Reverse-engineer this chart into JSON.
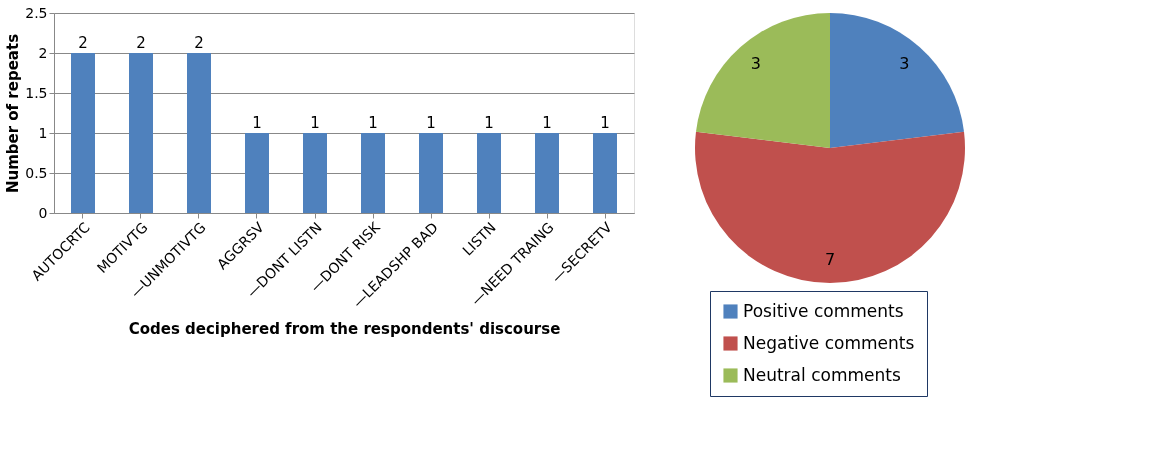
{
  "chart_data": [
    {
      "type": "bar",
      "xlabel": "Codes deciphered from the respondents' discourse",
      "ylabel": "Number of repeats",
      "categories": [
        "AUTOCRTC",
        "MOTIVTG",
        "—UNMOTIVTG",
        "AGGRSV",
        "—DONT LISTN",
        "—DONT RISK",
        "—LEADSHP BAD",
        "LISTN",
        "—NEED TRAING",
        "—SECRETV"
      ],
      "values": [
        2,
        2,
        2,
        1,
        1,
        1,
        1,
        1,
        1,
        1
      ],
      "color": "#4f81bd",
      "ylim": [
        0,
        2.5
      ],
      "yticks": [
        0,
        0.5,
        1,
        1.5,
        2,
        2.5
      ],
      "grid": "y",
      "data_labels": true
    },
    {
      "type": "pie",
      "categories": [
        "Positive comments",
        "Negative comments",
        "Neutral comments"
      ],
      "values": [
        3,
        7,
        3
      ],
      "colors": [
        "#4f81bd",
        "#c0504d",
        "#9bbb59"
      ],
      "data_labels": true,
      "legend": "bottom"
    }
  ]
}
